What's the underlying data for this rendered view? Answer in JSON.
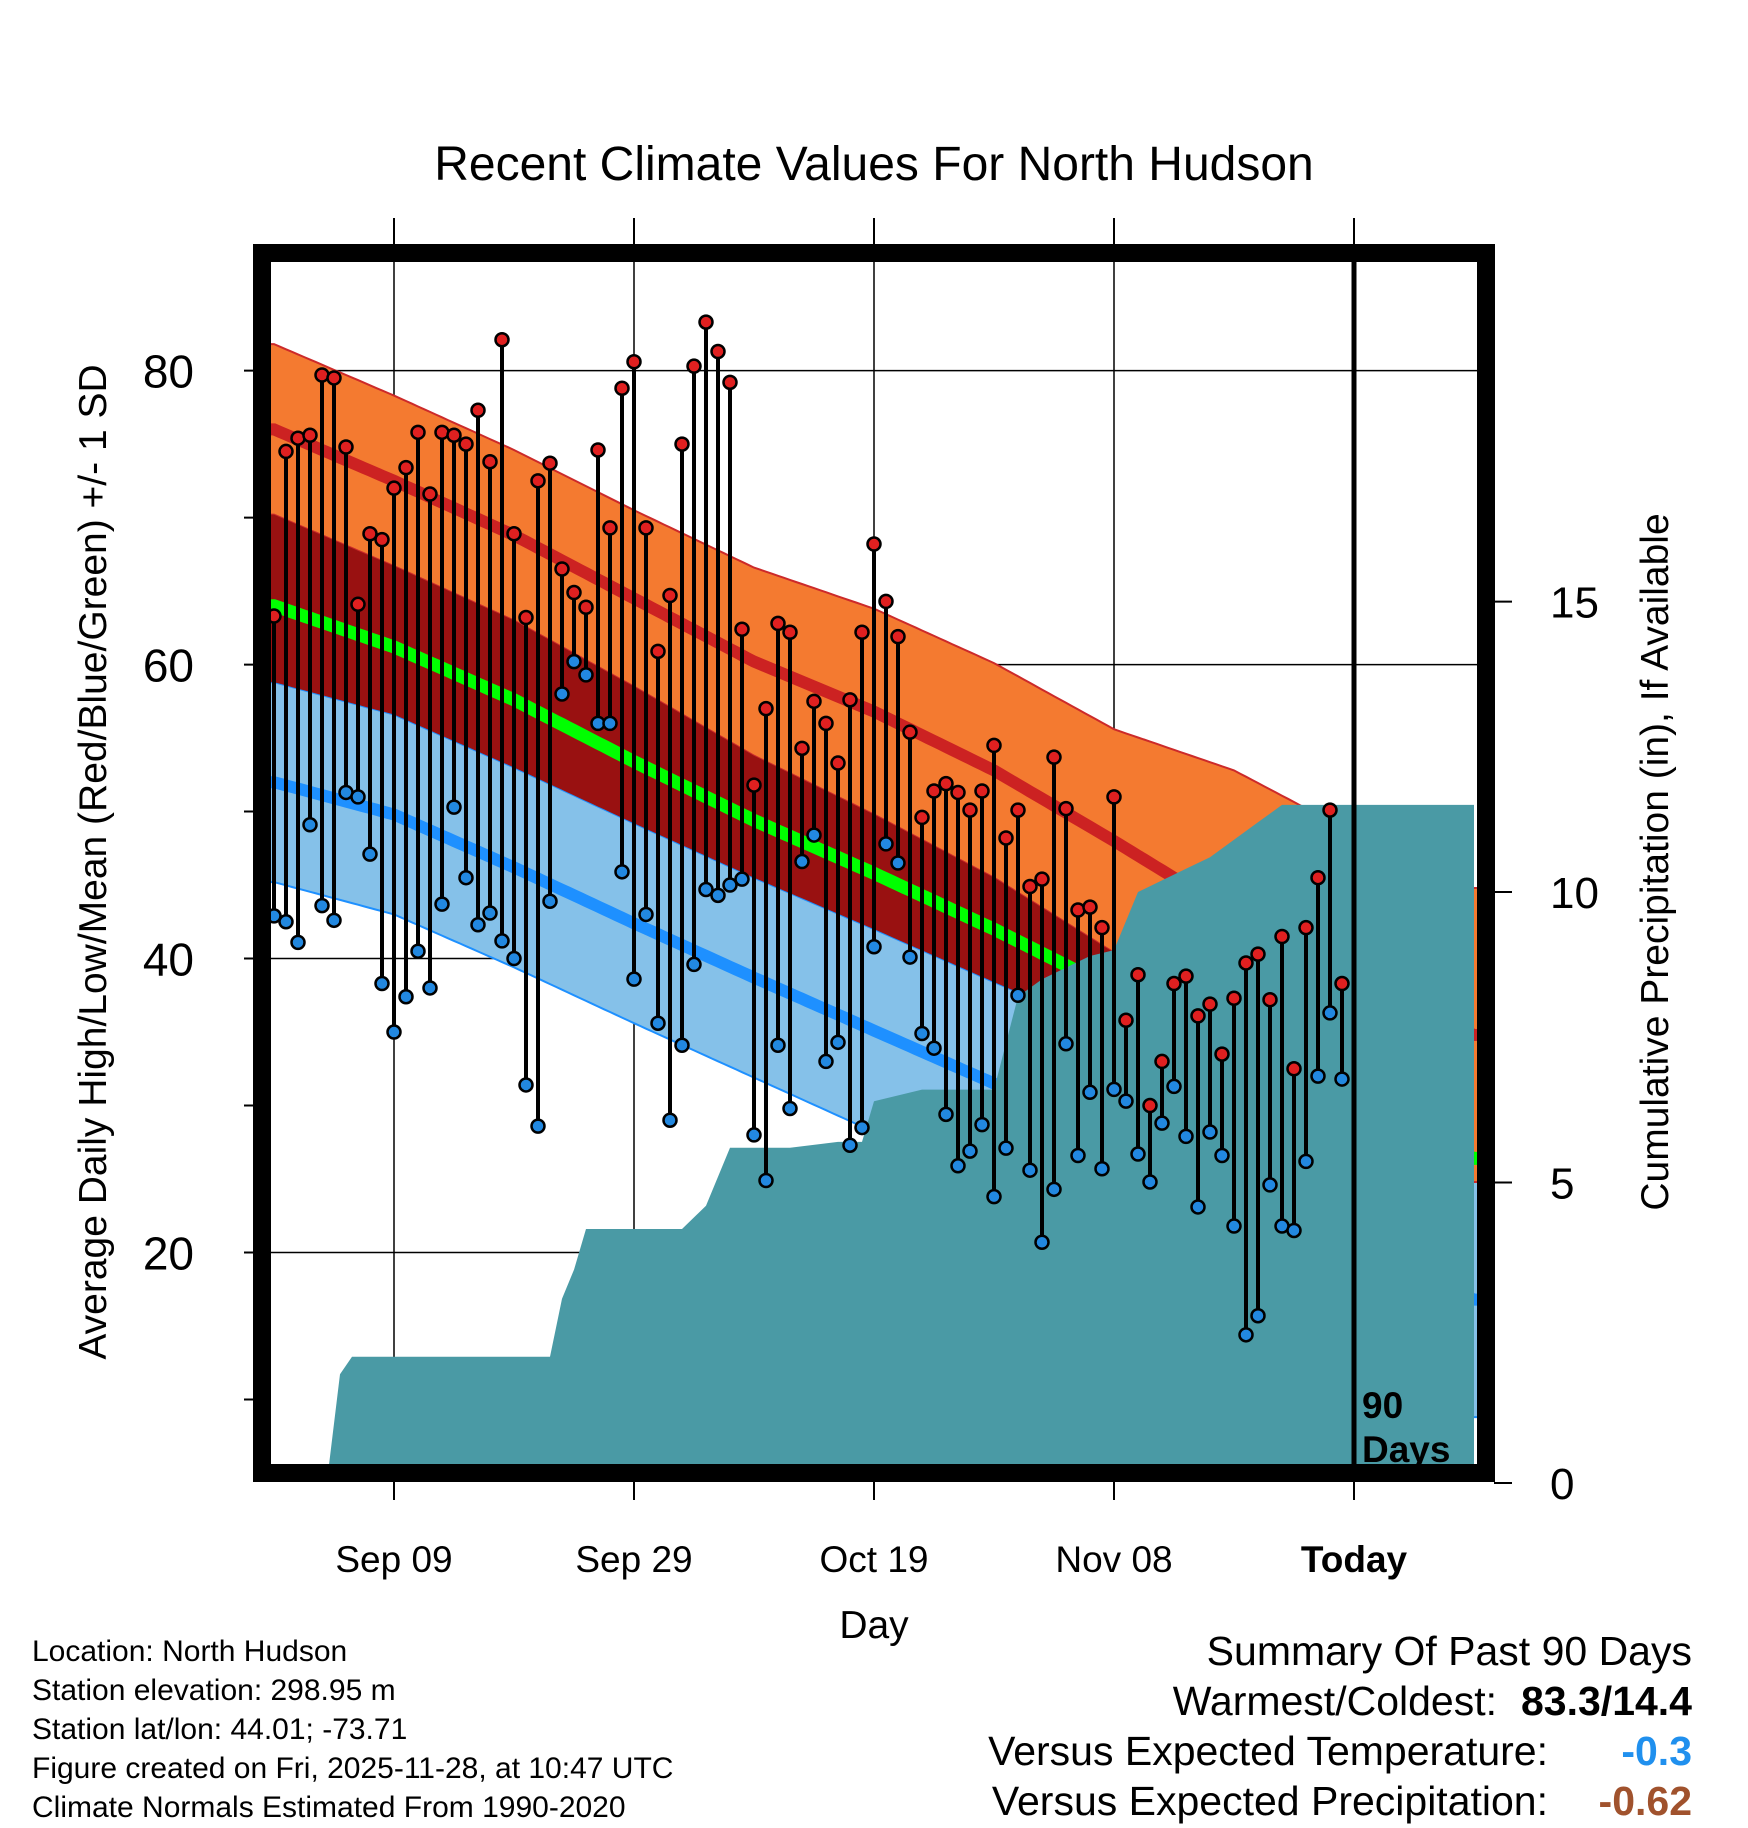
{
  "chart_data": {
    "type": "line",
    "title": "Recent Climate Values For North Hudson",
    "xlabel": "Day",
    "ylabel": "Average Daily High/Low/Mean (Red/Blue/Green) +/- 1 SD",
    "y2label": "Cumulative Precipitation (in), If Available",
    "ylim": [
      5,
      88
    ],
    "y2lim": [
      0,
      21
    ],
    "yticks": [
      "20",
      "40",
      "60",
      "80"
    ],
    "y2ticks": [
      "0",
      "5",
      "10",
      "15"
    ],
    "xlim": [
      -11,
      91
    ],
    "xticks": [
      {
        "day": 0,
        "label": "Sep 09"
      },
      {
        "day": 20,
        "label": "Sep 29"
      },
      {
        "day": 40,
        "label": "Oct 19"
      },
      {
        "day": 60,
        "label": "Nov 08"
      },
      {
        "day": 80,
        "label": "Today"
      }
    ],
    "today_day": 80,
    "today_annotation": [
      "90",
      "Days"
    ],
    "normal_high": {
      "days": [
        -10,
        0,
        10,
        20,
        30,
        40,
        50,
        60,
        70,
        80,
        90
      ],
      "mean": [
        76,
        72.5,
        68.8,
        64.5,
        60.2,
        56.8,
        52.8,
        48,
        43,
        38.5,
        34.8
      ],
      "sd": [
        5.8,
        5.8,
        5.8,
        6.0,
        6.4,
        7.0,
        7.3,
        7.6,
        9.8,
        10,
        10
      ]
    },
    "normal_low": {
      "days": [
        -10,
        0,
        10,
        20,
        30,
        40,
        50,
        60,
        70,
        80,
        90
      ],
      "mean": [
        52,
        49.8,
        46.2,
        42.4,
        38.7,
        35.1,
        31.5,
        27.9,
        24.2,
        20.5,
        16.8
      ],
      "sd": [
        6.8,
        6.8,
        6.8,
        6.8,
        6.8,
        6.9,
        6.9,
        7.0,
        7.0,
        8,
        8
      ]
    },
    "normal_mean": {
      "days": [
        -10,
        0,
        10,
        20,
        30,
        40,
        50,
        60,
        70,
        80,
        90
      ],
      "values": [
        64,
        61.2,
        57.6,
        53.4,
        49.4,
        45.8,
        42,
        37.9,
        33.6,
        29.5,
        26.4
      ]
    },
    "series": [
      {
        "name": "Daily High",
        "day_start": -10,
        "values": [
          63.3,
          74.5,
          75.4,
          75.6,
          79.7,
          79.5,
          74.8,
          64.1,
          68.9,
          68.5,
          72.0,
          73.4,
          75.8,
          71.6,
          75.8,
          75.6,
          75.0,
          77.3,
          73.8,
          82.1,
          68.9,
          63.2,
          72.5,
          73.7,
          66.5,
          64.9,
          63.9,
          74.6,
          69.3,
          78.8,
          80.6,
          69.3,
          60.9,
          64.7,
          75.0,
          80.3,
          83.3,
          81.3,
          79.2,
          62.4,
          51.8,
          57.0,
          62.8,
          62.2,
          54.3,
          57.5,
          56.0,
          53.3,
          57.6,
          62.2,
          68.2,
          64.3,
          61.9,
          55.4,
          49.6,
          51.4,
          51.9,
          51.3,
          50.1,
          51.4,
          54.5,
          48.2,
          50.1,
          44.9,
          45.4,
          53.7,
          50.2,
          43.3,
          43.5,
          42.1,
          51.0,
          35.8,
          38.9,
          30.0,
          33.0,
          38.3,
          38.8,
          36.1,
          36.9,
          33.5,
          37.3,
          39.7,
          40.3,
          37.2,
          41.5,
          32.5,
          42.1,
          45.5,
          50.1,
          38.3
        ]
      },
      {
        "name": "Daily Low",
        "day_start": -10,
        "values": [
          42.9,
          42.5,
          41.1,
          49.1,
          43.6,
          42.6,
          51.3,
          51.0,
          47.1,
          38.3,
          35.0,
          37.4,
          40.5,
          38.0,
          43.7,
          50.3,
          45.5,
          42.3,
          43.1,
          41.2,
          40.0,
          31.4,
          28.6,
          43.9,
          58.0,
          60.2,
          59.3,
          56.0,
          56.0,
          45.9,
          38.6,
          43.0,
          35.6,
          29.0,
          34.1,
          39.6,
          44.7,
          44.3,
          45.0,
          45.4,
          28.0,
          24.9,
          34.1,
          29.8,
          46.6,
          48.4,
          33.0,
          34.3,
          27.3,
          28.5,
          40.8,
          47.8,
          46.5,
          40.1,
          34.9,
          33.9,
          29.4,
          25.9,
          26.9,
          28.7,
          23.8,
          27.1,
          37.5,
          25.6,
          20.7,
          24.3,
          34.2,
          26.6,
          30.9,
          25.7,
          31.1,
          30.3,
          26.7,
          24.8,
          28.8,
          31.3,
          27.9,
          23.1,
          28.2,
          26.6,
          21.8,
          14.4,
          15.7,
          24.6,
          21.8,
          21.5,
          26.2,
          32.0,
          36.3,
          31.8
        ]
      },
      {
        "name": "Cumulative Precipitation",
        "days": [
          -5.5,
          -4.5,
          -3.5,
          3,
          12,
          13,
          13.5,
          14,
          15,
          16,
          18,
          24,
          26,
          27,
          28,
          33,
          37,
          39,
          40,
          44,
          50,
          52,
          54,
          58,
          60,
          62,
          64,
          66,
          68,
          70,
          72,
          74,
          80,
          90
        ],
        "values": [
          0,
          1.7,
          2.0,
          2.0,
          2.0,
          2.0,
          2.5,
          3.0,
          3.5,
          4.2,
          4.2,
          4.2,
          4.6,
          5.1,
          5.6,
          5.6,
          5.7,
          5.7,
          6.4,
          6.6,
          6.6,
          8.2,
          8.5,
          8.9,
          9.0,
          10.0,
          10.2,
          10.4,
          10.6,
          10.9,
          11.2,
          11.5,
          11.5,
          11.5
        ]
      }
    ]
  },
  "location_info": {
    "location": "Location: North Hudson",
    "elevation": "Station elevation: 298.95 m",
    "latlon": "Station lat/lon: 44.01; -73.71",
    "created": "Figure created on Fri, 2025-11-28, at 10:47 UTC",
    "normals": "Climate Normals Estimated From 1990-2020"
  },
  "summary": {
    "title": "Summary Of Past 90 Days",
    "warm_cold_label": "Warmest/Coldest:",
    "warm_cold_value": "83.3/14.4",
    "temp_label": "Versus Expected Temperature:",
    "temp_value": "-0.3",
    "precip_label": "Versus Expected Precipitation:",
    "precip_value": "-0.62"
  },
  "colors": {
    "high_band": "#f47a30",
    "high_line": "#cc2222",
    "low_band": "#85c1e9",
    "low_line": "#1e90ff",
    "mean_line": "#00ff00",
    "precip_fill": "#4a9aa5",
    "high_marker": "#e02020",
    "low_marker": "#2288e0",
    "overlap_fill": "#991111",
    "temp_value": "#2090ee",
    "precip_value": "#a0522d"
  }
}
